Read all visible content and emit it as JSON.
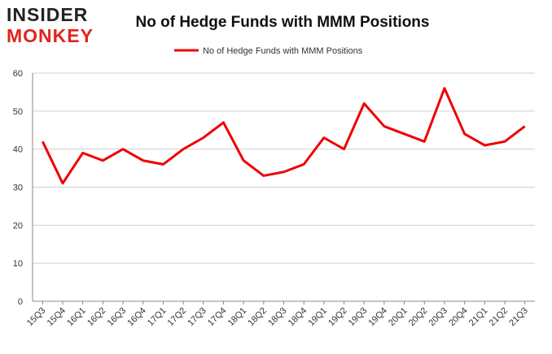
{
  "logo": {
    "line1": "INSIDER",
    "line2": "MONKEY"
  },
  "chart_data": {
    "type": "line",
    "title": "No of Hedge Funds with MMM Positions",
    "categories": [
      "15Q3",
      "15Q4",
      "16Q1",
      "16Q2",
      "16Q3",
      "16Q4",
      "17Q1",
      "17Q2",
      "17Q3",
      "17Q4",
      "18Q1",
      "18Q2",
      "18Q3",
      "18Q4",
      "19Q1",
      "19Q2",
      "19Q3",
      "19Q4",
      "20Q1",
      "20Q2",
      "20Q3",
      "20Q4",
      "21Q1",
      "21Q2",
      "21Q3"
    ],
    "series": [
      {
        "name": "No of Hedge Funds with MMM Positions",
        "color": "#ee0000",
        "values": [
          42,
          31,
          39,
          37,
          40,
          37,
          36,
          40,
          43,
          47,
          37,
          33,
          34,
          36,
          43,
          40,
          52,
          46,
          44,
          42,
          56,
          44,
          41,
          42,
          46
        ]
      }
    ],
    "ylim": [
      0,
      60
    ],
    "yticks": [
      0,
      10,
      20,
      30,
      40,
      50,
      60
    ],
    "grid": true,
    "legend": "top"
  }
}
